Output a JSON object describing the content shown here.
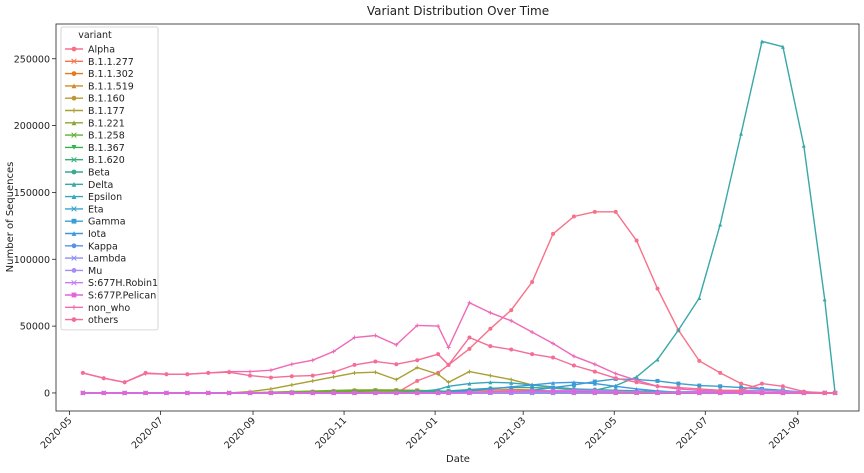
{
  "chart_data": {
    "type": "line",
    "title": "Variant Distribution Over Time",
    "xlabel": "Date",
    "ylabel": "Number of Sequences",
    "x_ticks": [
      "2020-05",
      "2020-07",
      "2020-09",
      "2020-11",
      "2021-01",
      "2021-03",
      "2021-05",
      "2021-07",
      "2021-09"
    ],
    "y_ticks": [
      0,
      50000,
      100000,
      150000,
      200000,
      250000
    ],
    "y_tick_labels": [
      "0",
      "50000",
      "100000",
      "150000",
      "200000",
      "250000"
    ],
    "ylim": [
      -13500,
      276000
    ],
    "xlim": [
      "2020-04-22",
      "2021-10-12"
    ],
    "grid": false,
    "legend": {
      "title": "variant",
      "placement": "top-left"
    },
    "x": [
      "2020-05-10",
      "2020-05-24",
      "2020-06-07",
      "2020-06-21",
      "2020-07-05",
      "2020-07-19",
      "2020-08-02",
      "2020-08-16",
      "2020-08-30",
      "2020-09-13",
      "2020-09-27",
      "2020-10-11",
      "2020-10-25",
      "2020-11-08",
      "2020-11-22",
      "2020-12-06",
      "2020-12-20",
      "2021-01-03",
      "2021-01-10",
      "2021-01-24",
      "2021-02-07",
      "2021-02-21",
      "2021-03-07",
      "2021-03-21",
      "2021-04-04",
      "2021-04-18",
      "2021-05-02",
      "2021-05-16",
      "2021-05-30",
      "2021-06-13",
      "2021-06-27",
      "2021-07-11",
      "2021-07-25",
      "2021-08-08",
      "2021-08-22",
      "2021-09-05",
      "2021-09-19",
      "2021-09-26"
    ],
    "series": [
      {
        "name": "Alpha",
        "color": "#f77189",
        "marker": "circle",
        "values": [
          0,
          0,
          0,
          0,
          0,
          0,
          0,
          0,
          0,
          0,
          0,
          0,
          0,
          0,
          0,
          0,
          9000,
          15000,
          21000,
          33000,
          48000,
          62000,
          83000,
          119000,
          132000,
          135500,
          135500,
          114000,
          78000,
          47000,
          24000,
          15000,
          7000,
          3000,
          1200,
          300,
          0,
          0
        ]
      },
      {
        "name": "B.1.1.277",
        "color": "#f5734a",
        "marker": "x",
        "values": [
          0,
          0,
          0,
          0,
          0,
          0,
          0,
          0,
          0,
          200,
          300,
          400,
          500,
          600,
          700,
          700,
          600,
          500,
          400,
          300,
          200,
          100,
          50,
          0,
          0,
          0,
          0,
          0,
          0,
          0,
          0,
          0,
          0,
          0,
          0,
          0,
          0,
          0
        ]
      },
      {
        "name": "B.1.1.302",
        "color": "#e4791f",
        "marker": "circle",
        "values": [
          0,
          0,
          0,
          0,
          0,
          0,
          0,
          0,
          0,
          100,
          200,
          300,
          400,
          500,
          500,
          500,
          400,
          300,
          200,
          100,
          50,
          0,
          0,
          0,
          0,
          0,
          0,
          0,
          0,
          0,
          0,
          0,
          0,
          0,
          0,
          0,
          0,
          0
        ]
      },
      {
        "name": "B.1.1.519",
        "color": "#d08a2b",
        "marker": "triangle",
        "values": [
          0,
          0,
          0,
          0,
          0,
          0,
          0,
          0,
          0,
          0,
          0,
          0,
          0,
          0,
          0,
          200,
          500,
          900,
          1200,
          1800,
          2200,
          2500,
          2200,
          1500,
          800,
          400,
          200,
          100,
          50,
          0,
          0,
          0,
          0,
          0,
          0,
          0,
          0,
          0
        ]
      },
      {
        "name": "B.1.160",
        "color": "#bb9832",
        "marker": "circle",
        "values": [
          0,
          0,
          0,
          0,
          0,
          0,
          0,
          0,
          0,
          0,
          500,
          1000,
          1500,
          2000,
          2200,
          2200,
          2000,
          1500,
          1000,
          600,
          300,
          100,
          0,
          0,
          0,
          0,
          0,
          0,
          0,
          0,
          0,
          0,
          0,
          0,
          0,
          0,
          0,
          0
        ]
      },
      {
        "name": "B.1.177",
        "color": "#a8a032",
        "marker": "plus",
        "values": [
          0,
          0,
          0,
          0,
          0,
          0,
          0,
          0,
          1000,
          3000,
          6000,
          9000,
          12000,
          15000,
          15500,
          10000,
          19000,
          14000,
          8000,
          16000,
          13000,
          10000,
          6000,
          4000,
          2000,
          1000,
          500,
          200,
          0,
          0,
          0,
          0,
          0,
          0,
          0,
          0,
          0,
          0
        ]
      },
      {
        "name": "B.1.221",
        "color": "#8ba732",
        "marker": "triangle",
        "values": [
          0,
          0,
          0,
          0,
          0,
          0,
          0,
          0,
          200,
          600,
          1000,
          1400,
          1800,
          2200,
          2200,
          1800,
          1400,
          1000,
          700,
          400,
          200,
          100,
          0,
          0,
          0,
          0,
          0,
          0,
          0,
          0,
          0,
          0,
          0,
          0,
          0,
          0,
          0,
          0
        ]
      },
      {
        "name": "B.1.258",
        "color": "#5fb133",
        "marker": "x",
        "values": [
          0,
          0,
          0,
          0,
          0,
          0,
          0,
          0,
          0,
          200,
          400,
          700,
          1000,
          1500,
          1800,
          1800,
          1700,
          1500,
          1200,
          900,
          600,
          300,
          100,
          0,
          0,
          0,
          0,
          0,
          0,
          0,
          0,
          0,
          0,
          0,
          0,
          0,
          0,
          0
        ]
      },
      {
        "name": "B.1.367",
        "color": "#33b04f",
        "marker": "triangle-down",
        "values": [
          0,
          0,
          0,
          0,
          0,
          0,
          0,
          0,
          0,
          0,
          0,
          100,
          200,
          300,
          400,
          400,
          400,
          300,
          200,
          100,
          50,
          0,
          0,
          0,
          0,
          0,
          0,
          0,
          0,
          0,
          0,
          0,
          0,
          0,
          0,
          0,
          0,
          0
        ]
      },
      {
        "name": "B.1.620",
        "color": "#35ad79",
        "marker": "x",
        "values": [
          0,
          0,
          0,
          0,
          0,
          0,
          0,
          0,
          0,
          0,
          0,
          0,
          0,
          0,
          0,
          0,
          0,
          0,
          0,
          100,
          300,
          600,
          900,
          1000,
          1000,
          800,
          600,
          400,
          200,
          100,
          0,
          0,
          0,
          0,
          0,
          0,
          0,
          0
        ]
      },
      {
        "name": "Beta",
        "color": "#36ab91",
        "marker": "circle",
        "values": [
          0,
          0,
          0,
          0,
          0,
          0,
          0,
          0,
          0,
          0,
          0,
          0,
          0,
          0,
          0,
          200,
          500,
          1000,
          1500,
          2500,
          3500,
          4000,
          4000,
          3500,
          3000,
          2500,
          2000,
          1500,
          1000,
          600,
          300,
          100,
          0,
          0,
          0,
          0,
          0,
          0
        ]
      },
      {
        "name": "Delta",
        "color": "#37a8a7",
        "marker": "triangle",
        "values": [
          0,
          0,
          0,
          0,
          0,
          0,
          0,
          0,
          0,
          0,
          0,
          0,
          0,
          0,
          0,
          0,
          0,
          0,
          0,
          0,
          0,
          0,
          0,
          0,
          500,
          2000,
          5500,
          12000,
          25000,
          47000,
          71000,
          126000,
          194000,
          263000,
          259000,
          185000,
          70000,
          0
        ]
      },
      {
        "name": "Epsilon",
        "color": "#38a5ba",
        "marker": "triangle",
        "values": [
          0,
          0,
          0,
          0,
          0,
          0,
          0,
          0,
          0,
          0,
          0,
          0,
          0,
          0,
          0,
          300,
          1000,
          2500,
          5000,
          7000,
          8000,
          7500,
          6000,
          4500,
          3000,
          2000,
          1200,
          700,
          400,
          200,
          100,
          0,
          0,
          0,
          0,
          0,
          0,
          0
        ]
      },
      {
        "name": "Eta",
        "color": "#39a2c9",
        "marker": "x",
        "values": [
          0,
          0,
          0,
          0,
          0,
          0,
          0,
          0,
          0,
          0,
          0,
          0,
          0,
          0,
          0,
          0,
          0,
          0,
          0,
          0,
          100,
          300,
          600,
          900,
          1000,
          900,
          600,
          300,
          100,
          0,
          0,
          0,
          0,
          0,
          0,
          0,
          0,
          0
        ]
      },
      {
        "name": "Gamma",
        "color": "#3a9ed2",
        "marker": "square",
        "values": [
          0,
          0,
          0,
          0,
          0,
          0,
          0,
          0,
          0,
          0,
          0,
          0,
          0,
          0,
          0,
          0,
          0,
          0,
          0,
          0,
          0,
          500,
          2000,
          4000,
          6000,
          8500,
          10500,
          10000,
          9000,
          7000,
          5500,
          5000,
          4000,
          3000,
          2000,
          500,
          0,
          0
        ]
      },
      {
        "name": "Iota",
        "color": "#3c98e0",
        "marker": "triangle",
        "values": [
          0,
          0,
          0,
          0,
          0,
          0,
          0,
          0,
          0,
          0,
          0,
          0,
          0,
          0,
          0,
          0,
          0,
          200,
          800,
          1800,
          3000,
          4500,
          6000,
          7500,
          8000,
          7000,
          5000,
          3000,
          1500,
          600,
          200,
          0,
          0,
          0,
          0,
          0,
          0,
          0
        ]
      },
      {
        "name": "Kappa",
        "color": "#5a8feb",
        "marker": "circle",
        "values": [
          0,
          0,
          0,
          0,
          0,
          0,
          0,
          0,
          0,
          0,
          0,
          0,
          0,
          0,
          0,
          0,
          0,
          0,
          0,
          0,
          0,
          0,
          0,
          100,
          400,
          800,
          1000,
          700,
          400,
          200,
          100,
          0,
          0,
          0,
          0,
          0,
          0,
          0
        ]
      },
      {
        "name": "Lambda",
        "color": "#8a8ef4",
        "marker": "x",
        "values": [
          0,
          0,
          0,
          0,
          0,
          0,
          0,
          0,
          0,
          0,
          0,
          0,
          0,
          0,
          0,
          0,
          0,
          0,
          0,
          0,
          0,
          0,
          0,
          0,
          0,
          0,
          100,
          300,
          600,
          900,
          1000,
          1100,
          900,
          600,
          300,
          100,
          0,
          0
        ]
      },
      {
        "name": "Mu",
        "color": "#a58cf3",
        "marker": "circle",
        "values": [
          0,
          0,
          0,
          0,
          0,
          0,
          0,
          0,
          0,
          0,
          0,
          0,
          0,
          0,
          0,
          0,
          0,
          0,
          0,
          0,
          0,
          0,
          0,
          0,
          0,
          0,
          0,
          0,
          100,
          300,
          700,
          1200,
          1800,
          2000,
          1500,
          800,
          200,
          0
        ]
      },
      {
        "name": "S:677H.Robin1",
        "color": "#c77cf5",
        "marker": "x",
        "values": [
          0,
          0,
          0,
          0,
          0,
          0,
          0,
          0,
          0,
          0,
          0,
          0,
          0,
          0,
          0,
          0,
          0,
          0,
          0,
          0,
          300,
          700,
          1200,
          1700,
          2000,
          1800,
          1200,
          700,
          300,
          100,
          0,
          0,
          0,
          0,
          0,
          0,
          0,
          0
        ]
      },
      {
        "name": "S:677P.Pelican",
        "color": "#e465d8",
        "marker": "square",
        "values": [
          0,
          0,
          0,
          0,
          0,
          0,
          0,
          0,
          0,
          0,
          0,
          0,
          0,
          0,
          0,
          0,
          0,
          0,
          200,
          600,
          1000,
          1300,
          1400,
          1200,
          900,
          600,
          300,
          150,
          50,
          0,
          0,
          0,
          0,
          0,
          0,
          0,
          0,
          0
        ]
      },
      {
        "name": "non_who",
        "color": "#f068b8",
        "marker": "plus",
        "values": [
          15000,
          11000,
          8000,
          14500,
          14000,
          14000,
          15000,
          16000,
          16000,
          17000,
          21500,
          24500,
          31000,
          41500,
          43000,
          36000,
          50500,
          50000,
          34000,
          67500,
          60000,
          54000,
          45500,
          37000,
          27500,
          21500,
          14500,
          9500,
          5000,
          3000,
          2000,
          1500,
          1000,
          800,
          500,
          300,
          0,
          0
        ]
      },
      {
        "name": "others",
        "color": "#f56d97",
        "marker": "circle",
        "values": [
          15000,
          11000,
          8000,
          15000,
          14000,
          14000,
          15000,
          15500,
          13000,
          11500,
          12500,
          13000,
          15500,
          21000,
          23500,
          21500,
          24500,
          29000,
          21000,
          41500,
          35000,
          32500,
          29000,
          26500,
          20500,
          16000,
          11000,
          8000,
          5000,
          4000,
          3000,
          2000,
          2000,
          7000,
          5000,
          1000,
          0,
          0
        ]
      }
    ]
  }
}
